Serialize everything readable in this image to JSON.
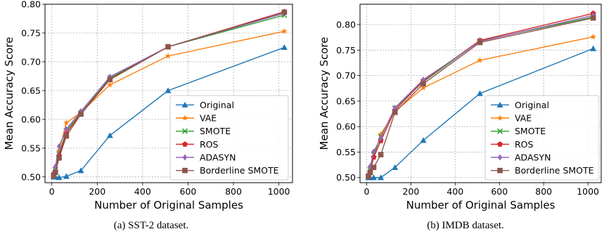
{
  "chart_data": [
    {
      "type": "line",
      "caption": "(a) SST-2 dataset.",
      "xlabel": "Number of Original Samples",
      "ylabel": "Mean Accuracy Score",
      "xlim": [
        -30,
        1060
      ],
      "ylim": [
        0.49,
        0.8
      ],
      "xticks": [
        0,
        200,
        400,
        600,
        800,
        1000
      ],
      "xtick_labels": [
        "0",
        "200",
        "400",
        "600",
        "800",
        "1000"
      ],
      "yticks": [
        0.5,
        0.55,
        0.6,
        0.65,
        0.7,
        0.75,
        0.8
      ],
      "ytick_labels": [
        "0.50",
        "0.55",
        "0.60",
        "0.65",
        "0.70",
        "0.75",
        "0.80"
      ],
      "grid": true,
      "legend_position": "lower-right",
      "x": [
        8,
        16,
        32,
        64,
        128,
        256,
        512,
        1024
      ],
      "series": [
        {
          "name": "Original",
          "values": [
            0.5,
            0.5,
            0.499,
            0.501,
            0.511,
            0.572,
            0.65,
            0.725
          ]
        },
        {
          "name": "VAE",
          "values": [
            0.505,
            0.515,
            0.545,
            0.594,
            0.612,
            0.66,
            0.71,
            0.753
          ]
        },
        {
          "name": "SMOTE",
          "values": [
            0.503,
            0.512,
            0.54,
            0.58,
            0.611,
            0.672,
            0.726,
            0.781
          ]
        },
        {
          "name": "ROS",
          "values": [
            0.504,
            0.51,
            0.537,
            0.576,
            0.61,
            0.67,
            0.726,
            0.787
          ]
        },
        {
          "name": "ADASYN",
          "values": [
            0.507,
            0.518,
            0.553,
            0.583,
            0.614,
            0.674,
            0.726,
            0.784
          ]
        },
        {
          "name": "Borderline SMOTE",
          "values": [
            0.502,
            0.508,
            0.533,
            0.571,
            0.609,
            0.669,
            0.726,
            0.786
          ]
        }
      ]
    },
    {
      "type": "line",
      "caption": "(b) IMDB dataset.",
      "xlabel": "Number of Original Samples",
      "ylabel": "Mean Accuracy Score",
      "xlim": [
        -30,
        1060
      ],
      "ylim": [
        0.49,
        0.84
      ],
      "xticks": [
        0,
        200,
        400,
        600,
        800,
        1000
      ],
      "xtick_labels": [
        "0",
        "200",
        "400",
        "600",
        "800",
        "1000"
      ],
      "yticks": [
        0.5,
        0.55,
        0.6,
        0.65,
        0.7,
        0.75,
        0.8
      ],
      "ytick_labels": [
        "0.50",
        "0.55",
        "0.60",
        "0.65",
        "0.70",
        "0.75",
        "0.80"
      ],
      "grid": true,
      "legend_position": "lower-right",
      "x": [
        8,
        16,
        32,
        64,
        128,
        256,
        512,
        1024
      ],
      "series": [
        {
          "name": "Original",
          "values": [
            0.5,
            0.5,
            0.5,
            0.5,
            0.52,
            0.573,
            0.665,
            0.753
          ]
        },
        {
          "name": "VAE",
          "values": [
            0.505,
            0.52,
            0.54,
            0.585,
            0.63,
            0.676,
            0.73,
            0.776
          ]
        },
        {
          "name": "SMOTE",
          "values": [
            0.503,
            0.515,
            0.545,
            0.58,
            0.636,
            0.688,
            0.768,
            0.815
          ]
        },
        {
          "name": "ROS",
          "values": [
            0.504,
            0.512,
            0.54,
            0.572,
            0.632,
            0.69,
            0.769,
            0.822
          ]
        },
        {
          "name": "ADASYN",
          "values": [
            0.506,
            0.522,
            0.551,
            0.578,
            0.637,
            0.692,
            0.767,
            0.818
          ]
        },
        {
          "name": "Borderline SMOTE",
          "values": [
            0.502,
            0.51,
            0.52,
            0.545,
            0.628,
            0.684,
            0.765,
            0.813
          ]
        }
      ]
    }
  ],
  "colors": [
    "#1f77b4",
    "#ff7f0e",
    "#2ca02c",
    "#d62728",
    "#9467bd",
    "#8c564b"
  ],
  "markers": [
    "triangle",
    "star",
    "x",
    "pentagon",
    "diamond",
    "square"
  ]
}
